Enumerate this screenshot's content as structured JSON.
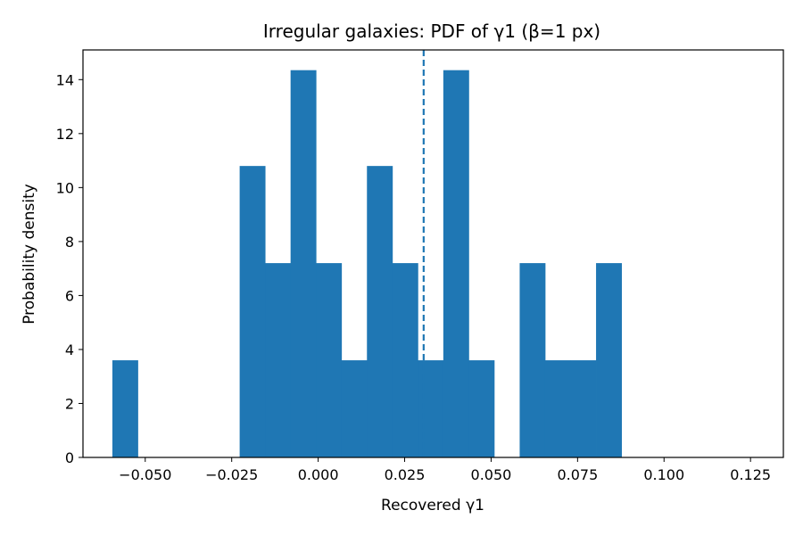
{
  "chart_data": {
    "type": "bar",
    "title": "Irregular galaxies: PDF of γ1 (β=1 px)",
    "xlabel": "Recovered γ1",
    "ylabel": "Probability density",
    "xlim": [
      -0.068,
      0.1345
    ],
    "ylim": [
      0,
      15.1
    ],
    "xticks": [
      -0.05,
      -0.025,
      0.0,
      0.025,
      0.05,
      0.075,
      0.1,
      0.125
    ],
    "xtick_labels": [
      "−0.050",
      "−0.025",
      "0.000",
      "0.025",
      "0.050",
      "0.075",
      "0.100",
      "0.125"
    ],
    "yticks": [
      0,
      2,
      4,
      6,
      8,
      10,
      12,
      14
    ],
    "ytick_labels": [
      "0",
      "2",
      "4",
      "6",
      "8",
      "10",
      "12",
      "14"
    ],
    "bin_start": -0.0595,
    "bin_width": 0.00736,
    "values": [
      3.6,
      0,
      0,
      0,
      0,
      10.8,
      7.2,
      14.35,
      7.2,
      3.6,
      10.8,
      7.2,
      3.6,
      14.35,
      3.6,
      0,
      7.2,
      3.6,
      3.6,
      7.2
    ],
    "mean_line": 0.0305,
    "bar_color": "#1f77b4",
    "line_color": "#1f77b4",
    "grid": false
  }
}
